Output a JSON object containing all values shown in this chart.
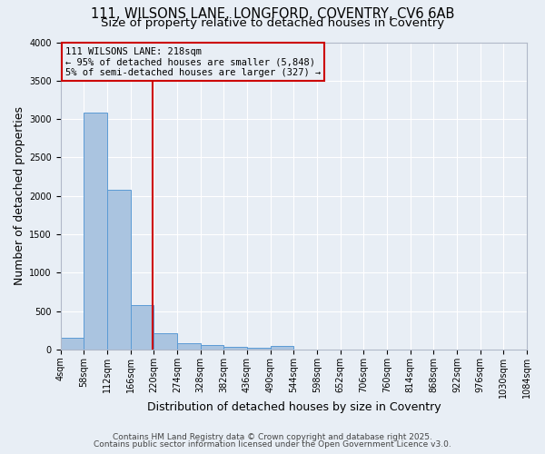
{
  "title1": "111, WILSONS LANE, LONGFORD, COVENTRY, CV6 6AB",
  "title2": "Size of property relative to detached houses in Coventry",
  "xlabel": "Distribution of detached houses by size in Coventry",
  "ylabel": "Number of detached properties",
  "bin_edges": [
    4,
    58,
    112,
    166,
    220,
    274,
    328,
    382,
    436,
    490,
    544,
    598,
    652,
    706,
    760,
    814,
    868,
    922,
    976,
    1030,
    1084
  ],
  "bar_heights": [
    150,
    3080,
    2080,
    580,
    210,
    80,
    55,
    30,
    20,
    50,
    0,
    0,
    0,
    0,
    0,
    0,
    0,
    0,
    0,
    0
  ],
  "bar_color": "#aac4e0",
  "bar_edge_color": "#5b9bd5",
  "vline_x": 218,
  "vline_color": "#cc0000",
  "ylim": [
    0,
    4000
  ],
  "annotation_line1": "111 WILSONS LANE: 218sqm",
  "annotation_line2": "← 95% of detached houses are smaller (5,848)",
  "annotation_line3": "5% of semi-detached houses are larger (327) →",
  "annotation_box_color": "#cc0000",
  "footnote1": "Contains HM Land Registry data © Crown copyright and database right 2025.",
  "footnote2": "Contains public sector information licensed under the Open Government Licence v3.0.",
  "bg_color": "#e8eef5",
  "grid_color": "#ffffff",
  "title_fontsize": 10.5,
  "title2_fontsize": 9.5,
  "axis_label_fontsize": 9,
  "tick_fontsize": 7,
  "annotation_fontsize": 7.5,
  "footnote_fontsize": 6.5
}
